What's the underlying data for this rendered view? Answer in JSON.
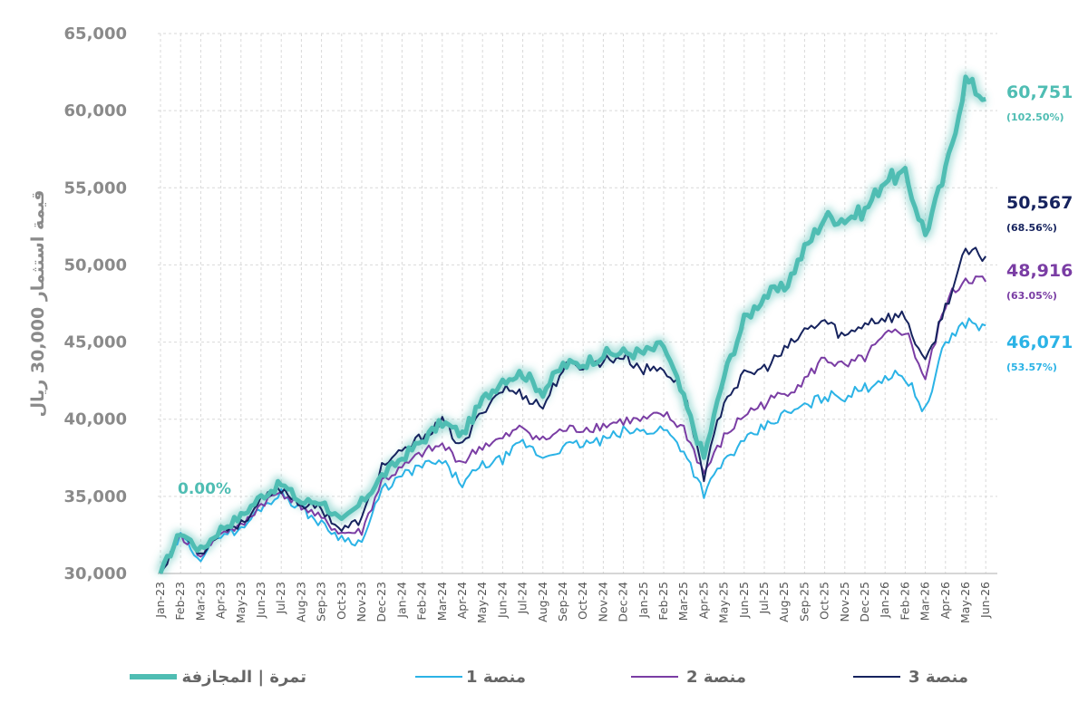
{
  "chart_data": {
    "type": "line",
    "ylabel": "قيمة استثمار 30,000 ريال",
    "xlabel": "",
    "ylim": [
      30000,
      65000
    ],
    "yticks": [
      "30,000",
      "35,000",
      "40,000",
      "45,000",
      "50,000",
      "55,000",
      "60,000",
      "65,000"
    ],
    "ytick_values": [
      30000,
      35000,
      40000,
      45000,
      50000,
      55000,
      60000,
      65000
    ],
    "grid": true,
    "legend_position": "bottom",
    "start_label": "0.00%",
    "x_months": [
      "Jan-23",
      "Feb-23",
      "Mar-23",
      "Apr-23",
      "May-23",
      "Jun-23",
      "Jul-23",
      "Aug-23",
      "Sep-23",
      "Oct-23",
      "Nov-23",
      "Dec-23",
      "Jan-24",
      "Feb-24",
      "Mar-24",
      "Apr-24",
      "May-24",
      "Jun-24",
      "Jul-24",
      "Aug-24",
      "Sep-24",
      "Oct-24",
      "Nov-24",
      "Dec-24",
      "Jan-25",
      "Feb-25",
      "Mar-25",
      "Apr-25",
      "May-25",
      "Jun-25",
      "Jul-25",
      "Aug-25",
      "Sep-25",
      "Oct-25",
      "Nov-25",
      "Dec-25",
      "Jan-26",
      "Feb-26",
      "Mar-26",
      "Apr-26",
      "May-26",
      "Jun-26"
    ],
    "series": [
      {
        "name": "تمرة | المجازفة",
        "color": "#4fbdb3",
        "end_value": "60,751",
        "end_pct": "(102.50%)",
        "values": [
          30000,
          32700,
          31500,
          32900,
          33700,
          35000,
          35800,
          34600,
          34700,
          33300,
          34600,
          36300,
          37500,
          38600,
          39800,
          39000,
          41200,
          42600,
          43000,
          41800,
          43500,
          43600,
          44200,
          44300,
          44300,
          44800,
          41300,
          37500,
          42800,
          46400,
          48000,
          48500,
          51000,
          53100,
          53000,
          53500,
          55600,
          55800,
          52000,
          56000,
          62000,
          60751
        ]
      },
      {
        "name": "منصة 1",
        "color": "#2bb3e6",
        "end_value": "46,071",
        "end_pct": "(53.57%)",
        "values": [
          30000,
          32400,
          31000,
          32600,
          32800,
          34300,
          35200,
          34200,
          33200,
          32300,
          32000,
          35400,
          36300,
          37000,
          37200,
          35800,
          37000,
          37400,
          38500,
          37500,
          38200,
          38400,
          38600,
          39200,
          39200,
          39400,
          38000,
          35200,
          37300,
          38500,
          39500,
          40300,
          40800,
          41500,
          41500,
          42000,
          42800,
          42800,
          40500,
          45000,
          46300,
          46071
        ]
      },
      {
        "name": "منصة 2",
        "color": "#7a3da4",
        "end_value": "48,916",
        "end_pct": "(63.05%)",
        "values": [
          30000,
          32500,
          31200,
          32700,
          33000,
          34500,
          35300,
          34400,
          33500,
          32600,
          32700,
          36000,
          36800,
          37800,
          38300,
          37200,
          38300,
          38700,
          39500,
          38600,
          39300,
          39400,
          39600,
          39900,
          39900,
          40300,
          39400,
          36500,
          38800,
          40300,
          41000,
          41700,
          42500,
          44000,
          43300,
          44000,
          45300,
          45800,
          42600,
          47500,
          49200,
          48916
        ]
      },
      {
        "name": "منصة 3",
        "color": "#16235e",
        "end_value": "50,567",
        "end_pct": "(68.56%)",
        "values": [
          30000,
          32600,
          31300,
          32800,
          33200,
          34700,
          35500,
          34500,
          34200,
          32800,
          33500,
          37000,
          37800,
          38900,
          39800,
          38200,
          40600,
          42000,
          41600,
          40800,
          43300,
          43500,
          43800,
          44100,
          43200,
          43300,
          41800,
          36300,
          41300,
          42800,
          43300,
          44400,
          45700,
          46400,
          45300,
          46300,
          46600,
          46700,
          43500,
          47300,
          50800,
          50567
        ]
      }
    ]
  }
}
